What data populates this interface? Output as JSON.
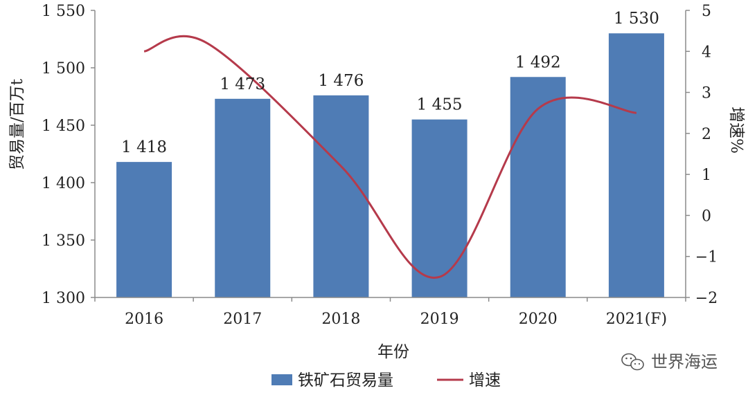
{
  "chart_data": {
    "type": "bar",
    "categories": [
      "2016",
      "2017",
      "2018",
      "2019",
      "2020",
      "2021(F)"
    ],
    "series": [
      {
        "name": "铁矿石贸易量",
        "type": "bar",
        "axis": "left",
        "values": [
          1418,
          1473,
          1476,
          1455,
          1492,
          1530
        ],
        "value_labels": [
          "1 418",
          "1 473",
          "1 476",
          "1 455",
          "1 492",
          "1 530"
        ],
        "color": "#4f7cb5"
      },
      {
        "name": "增速",
        "type": "line",
        "axis": "right",
        "values": [
          4.0,
          null,
          1.2,
          -1.5,
          2.6,
          2.5
        ],
        "color": "#b53a4b"
      }
    ],
    "xlabel": "年份",
    "ylabel_left": "贸易量/百万t",
    "ylabel_right": "增速%",
    "ylim_left": [
      1300,
      1550
    ],
    "ylim_right": [
      -2,
      5
    ],
    "yticks_left": [
      "1 550",
      "1 500",
      "1 450",
      "1 400",
      "1 350",
      "1 300"
    ],
    "yticks_right": [
      "5",
      "4",
      "3",
      "2",
      "1",
      "0",
      "−1",
      "−2"
    ],
    "legend": "bottom-center",
    "grid": false
  },
  "watermark": {
    "icon": "wechat-icon",
    "text": "世界海运"
  }
}
